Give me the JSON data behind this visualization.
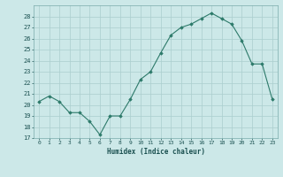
{
  "x": [
    0,
    1,
    2,
    3,
    4,
    5,
    6,
    7,
    8,
    9,
    10,
    11,
    12,
    13,
    14,
    15,
    16,
    17,
    18,
    19,
    20,
    21,
    22,
    23
  ],
  "y": [
    20.3,
    20.8,
    20.3,
    19.3,
    19.3,
    18.5,
    17.3,
    19.0,
    19.0,
    20.5,
    22.3,
    23.0,
    24.7,
    26.3,
    27.0,
    27.3,
    27.8,
    28.3,
    27.8,
    27.3,
    25.8,
    23.7,
    23.7,
    20.5
  ],
  "xlabel": "Humidex (Indice chaleur)",
  "ylim": [
    17,
    29
  ],
  "yticks": [
    17,
    18,
    19,
    20,
    21,
    22,
    23,
    24,
    25,
    26,
    27,
    28
  ],
  "xticks": [
    0,
    1,
    2,
    3,
    4,
    5,
    6,
    7,
    8,
    9,
    10,
    11,
    12,
    13,
    14,
    15,
    16,
    17,
    18,
    19,
    20,
    21,
    22,
    23
  ],
  "xtick_labels": [
    "0",
    "1",
    "2",
    "3",
    "4",
    "5",
    "6",
    "7",
    "8",
    "9",
    "10",
    "11",
    "12",
    "13",
    "14",
    "15",
    "16",
    "17",
    "18",
    "19",
    "20",
    "21",
    "22",
    "23"
  ],
  "line_color": "#2d7a6a",
  "marker_color": "#2d7a6a",
  "bg_color": "#cce8e8",
  "grid_color": "#aacece",
  "figsize": [
    3.2,
    2.0
  ],
  "dpi": 100
}
